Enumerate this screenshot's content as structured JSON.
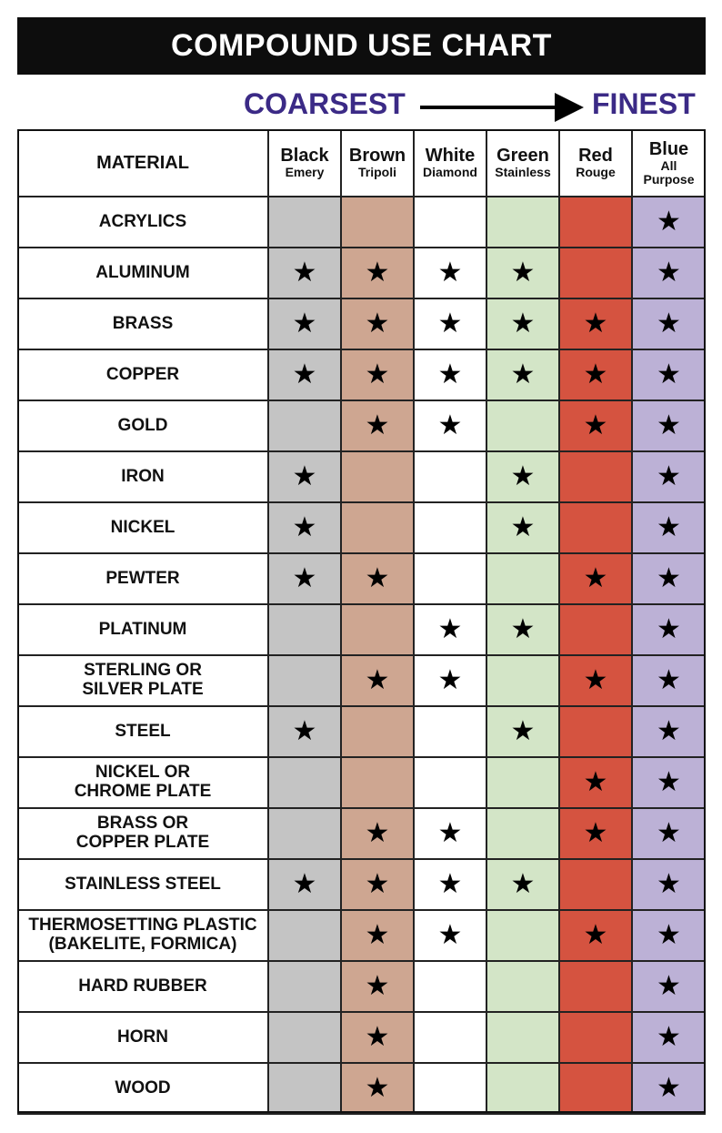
{
  "title": "COMPOUND USE CHART",
  "scale": {
    "coarse": "COARSEST",
    "fine": "FINEST"
  },
  "header": {
    "material": "MATERIAL"
  },
  "columns": [
    {
      "name": "Black",
      "sub": "Emery",
      "color": "#c4c4c4"
    },
    {
      "name": "Brown",
      "sub": "Tripoli",
      "color": "#cea691"
    },
    {
      "name": "White",
      "sub": "Diamond",
      "color": "#ffffff"
    },
    {
      "name": "Green",
      "sub": "Stainless",
      "color": "#d3e5c7"
    },
    {
      "name": "Red",
      "sub": "Rouge",
      "color": "#d55340"
    },
    {
      "name": "Blue",
      "sub": "All\nPurpose",
      "color": "#bcb1d6"
    }
  ],
  "chart_data": {
    "type": "table",
    "title": "COMPOUND USE CHART",
    "columns": [
      "Black Emery",
      "Brown Tripoli",
      "White Diamond",
      "Green Stainless",
      "Red Rouge",
      "Blue All Purpose"
    ],
    "rows": [
      {
        "material": "ACRYLICS",
        "marks": [
          0,
          0,
          0,
          0,
          0,
          1
        ]
      },
      {
        "material": "ALUMINUM",
        "marks": [
          1,
          1,
          1,
          1,
          0,
          1
        ]
      },
      {
        "material": "BRASS",
        "marks": [
          1,
          1,
          1,
          1,
          1,
          1
        ]
      },
      {
        "material": "COPPER",
        "marks": [
          1,
          1,
          1,
          1,
          1,
          1
        ]
      },
      {
        "material": "GOLD",
        "marks": [
          0,
          1,
          1,
          0,
          1,
          1
        ]
      },
      {
        "material": "IRON",
        "marks": [
          1,
          0,
          0,
          1,
          0,
          1
        ]
      },
      {
        "material": "NICKEL",
        "marks": [
          1,
          0,
          0,
          1,
          0,
          1
        ]
      },
      {
        "material": "PEWTER",
        "marks": [
          1,
          1,
          0,
          0,
          1,
          1
        ]
      },
      {
        "material": "PLATINUM",
        "marks": [
          0,
          0,
          1,
          1,
          0,
          1
        ]
      },
      {
        "material": "STERLING OR\nSILVER PLATE",
        "marks": [
          0,
          1,
          1,
          0,
          1,
          1
        ]
      },
      {
        "material": "STEEL",
        "marks": [
          1,
          0,
          0,
          1,
          0,
          1
        ]
      },
      {
        "material": "NICKEL OR\nCHROME PLATE",
        "marks": [
          0,
          0,
          0,
          0,
          1,
          1
        ]
      },
      {
        "material": "BRASS OR\nCOPPER PLATE",
        "marks": [
          0,
          1,
          1,
          0,
          1,
          1
        ]
      },
      {
        "material": "STAINLESS STEEL",
        "marks": [
          1,
          1,
          1,
          1,
          0,
          1
        ]
      },
      {
        "material": "THERMOSETTING PLASTIC\n(BAKELITE, FORMICA)",
        "marks": [
          0,
          1,
          1,
          0,
          1,
          1
        ]
      },
      {
        "material": "HARD RUBBER",
        "marks": [
          0,
          1,
          0,
          0,
          0,
          1
        ]
      },
      {
        "material": "HORN",
        "marks": [
          0,
          1,
          0,
          0,
          0,
          1
        ]
      },
      {
        "material": "WOOD",
        "marks": [
          0,
          1,
          0,
          0,
          0,
          1
        ]
      }
    ]
  }
}
